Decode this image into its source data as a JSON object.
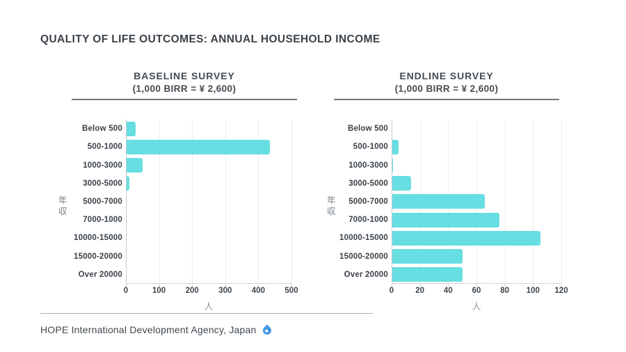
{
  "page": {
    "title": "QUALITY OF LIFE OUTCOMES: ANNUAL HOUSEHOLD INCOME"
  },
  "colors": {
    "bar": "#67dee2",
    "title_text": "#3a4149",
    "header_text": "#434b52",
    "muted_text": "#8f969e",
    "gridline": "#eaeced",
    "axis_line": "#c6cbd0",
    "header_rule": "#6e7982",
    "footer_rule": "#a9afb5",
    "drop_blue": "#4299e8"
  },
  "chart_data": [
    {
      "type": "bar",
      "orientation": "horizontal",
      "title": "BASELINE SURVEY",
      "subtitle": "(1,000 BIRR = ¥ 2,600)",
      "categories": [
        "Below 500",
        "500-1000",
        "1000-3000",
        "3000-5000",
        "5000-7000",
        "7000-1000",
        "10000-15000",
        "15000-20000",
        "Over 20000"
      ],
      "values": [
        30,
        435,
        50,
        10,
        0,
        2,
        0,
        0,
        0
      ],
      "xlabel": "人",
      "ylabel": "年収",
      "xlim": [
        0,
        500
      ],
      "xticks": [
        0,
        100,
        200,
        300,
        400,
        500
      ],
      "grid": true,
      "legend": false
    },
    {
      "type": "bar",
      "orientation": "horizontal",
      "title": "ENDLINE SURVEY",
      "subtitle": "(1,000 BIRR = ¥ 2,600)",
      "categories": [
        "Below 500",
        "500-1000",
        "1000-3000",
        "3000-5000",
        "5000-7000",
        "7000-1000",
        "10000-15000",
        "15000-20000",
        "Over 20000"
      ],
      "values": [
        0,
        5,
        1,
        14,
        66,
        76,
        105,
        50,
        50
      ],
      "xlabel": "人",
      "ylabel": "年収",
      "xlim": [
        0,
        120
      ],
      "xticks": [
        0,
        20,
        40,
        60,
        80,
        100,
        120
      ],
      "grid": true,
      "legend": false
    }
  ],
  "footer": {
    "text": "HOPE International Development Agency, Japan",
    "icon": "water-drop-icon"
  }
}
